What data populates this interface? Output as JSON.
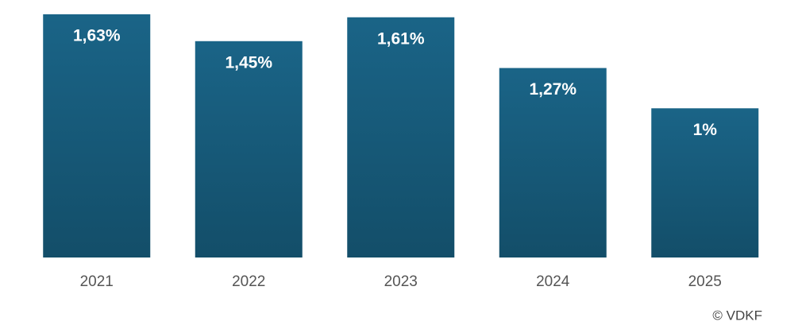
{
  "chart_data": {
    "type": "bar",
    "categories": [
      "2021",
      "2022",
      "2023",
      "2024",
      "2025"
    ],
    "values": [
      1.63,
      1.45,
      1.61,
      1.27,
      1
    ],
    "value_labels": [
      "1,63%",
      "1,45%",
      "1,61%",
      "1,27%",
      "1%"
    ],
    "color": "#175f80",
    "source": "© VDKF"
  }
}
